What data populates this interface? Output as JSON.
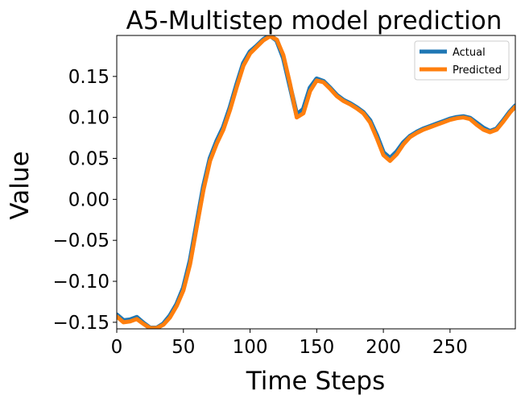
{
  "chart_data": {
    "type": "line",
    "title": "A5-Multistep model prediction",
    "xlabel": "Time Steps",
    "ylabel": "Value",
    "xlim": [
      0,
      299
    ],
    "ylim": [
      -0.158,
      0.2
    ],
    "xticks": [
      0,
      50,
      100,
      150,
      200,
      250
    ],
    "yticks": [
      -0.15,
      -0.1,
      -0.05,
      0.0,
      0.05,
      0.1,
      0.15
    ],
    "xtick_labels": [
      "0",
      "50",
      "100",
      "150",
      "200",
      "250"
    ],
    "ytick_labels": [
      "−0.15",
      "−0.10",
      "−0.05",
      "0.00",
      "0.05",
      "0.10",
      "0.15"
    ],
    "legend": {
      "position": "upper right",
      "entries": [
        "Actual",
        "Predicted"
      ]
    },
    "grid": false,
    "series": [
      {
        "name": "Actual",
        "color": "#1f77b4",
        "x": [
          0,
          5,
          10,
          15,
          20,
          25,
          30,
          35,
          40,
          45,
          50,
          55,
          60,
          65,
          70,
          75,
          80,
          85,
          90,
          95,
          100,
          105,
          110,
          115,
          120,
          125,
          130,
          135,
          140,
          145,
          150,
          155,
          160,
          165,
          170,
          175,
          180,
          185,
          190,
          195,
          200,
          205,
          210,
          215,
          220,
          225,
          230,
          235,
          240,
          245,
          250,
          255,
          260,
          265,
          270,
          275,
          280,
          285,
          290,
          295,
          299
        ],
        "values": [
          -0.141,
          -0.148,
          -0.147,
          -0.144,
          -0.151,
          -0.157,
          -0.157,
          -0.152,
          -0.142,
          -0.128,
          -0.108,
          -0.075,
          -0.03,
          0.015,
          0.05,
          0.071,
          0.088,
          0.112,
          0.14,
          0.166,
          0.18,
          0.187,
          0.195,
          0.2,
          0.194,
          0.173,
          0.138,
          0.103,
          0.11,
          0.136,
          0.147,
          0.144,
          0.136,
          0.127,
          0.121,
          0.117,
          0.112,
          0.106,
          0.096,
          0.078,
          0.057,
          0.05,
          0.058,
          0.069,
          0.077,
          0.082,
          0.086,
          0.089,
          0.092,
          0.095,
          0.098,
          0.1,
          0.101,
          0.099,
          0.093,
          0.087,
          0.083,
          0.086,
          0.096,
          0.107,
          0.114
        ]
      },
      {
        "name": "Predicted",
        "color": "#ff7f0e",
        "x": [
          0,
          5,
          10,
          15,
          20,
          25,
          30,
          35,
          40,
          45,
          50,
          55,
          60,
          65,
          70,
          75,
          80,
          85,
          90,
          95,
          100,
          105,
          110,
          115,
          120,
          125,
          130,
          135,
          140,
          145,
          150,
          155,
          160,
          165,
          170,
          175,
          180,
          185,
          190,
          195,
          200,
          205,
          210,
          215,
          220,
          225,
          230,
          235,
          240,
          245,
          250,
          255,
          260,
          265,
          270,
          275,
          280,
          285,
          290,
          295,
          299
        ],
        "values": [
          -0.143,
          -0.15,
          -0.149,
          -0.146,
          -0.152,
          -0.157,
          -0.157,
          -0.153,
          -0.144,
          -0.13,
          -0.111,
          -0.079,
          -0.034,
          0.011,
          0.047,
          0.068,
          0.085,
          0.109,
          0.137,
          0.163,
          0.178,
          0.186,
          0.194,
          0.199,
          0.195,
          0.176,
          0.141,
          0.1,
          0.105,
          0.132,
          0.145,
          0.143,
          0.135,
          0.126,
          0.12,
          0.116,
          0.111,
          0.105,
          0.094,
          0.075,
          0.054,
          0.047,
          0.055,
          0.067,
          0.076,
          0.081,
          0.085,
          0.088,
          0.091,
          0.094,
          0.097,
          0.099,
          0.1,
          0.098,
          0.091,
          0.085,
          0.082,
          0.085,
          0.095,
          0.106,
          0.113
        ]
      }
    ]
  }
}
